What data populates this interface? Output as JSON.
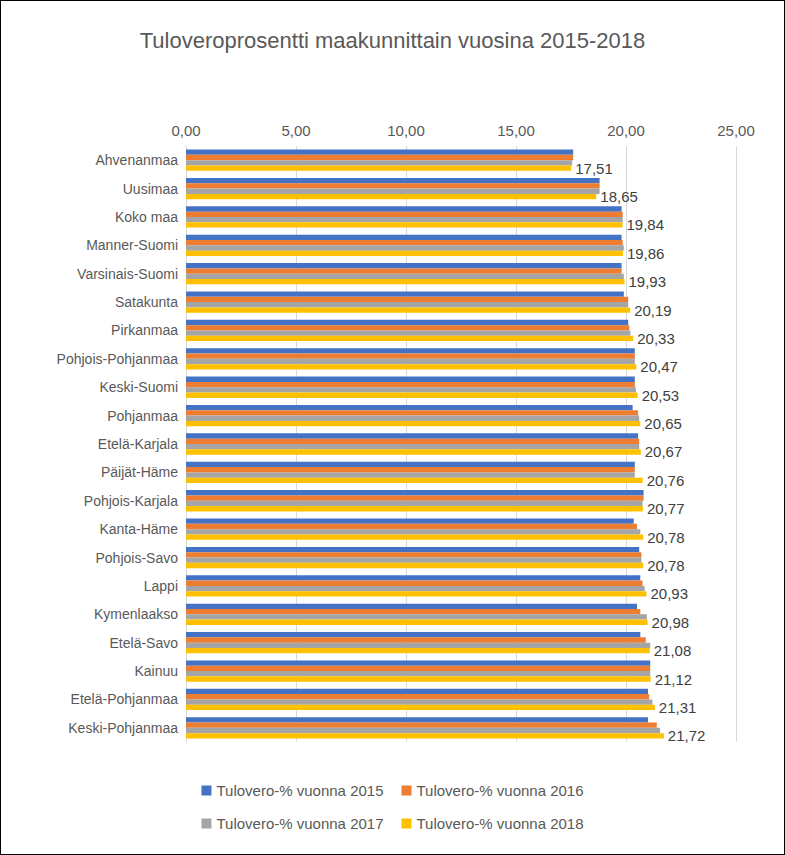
{
  "chart_data": {
    "type": "bar",
    "title": "Tuloveroprosentti maakunnittain vuosina 2015-2018",
    "orientation": "horizontal",
    "grid": true,
    "legend": "bottom",
    "categories": [
      "Ahvenanmaa",
      "Uusimaa",
      "Koko maa",
      "Manner-Suomi",
      "Varsinais-Suomi",
      "Satakunta",
      "Pirkanmaa",
      "Pohjois-Pohjanmaa",
      "Keski-Suomi",
      "Pohjanmaa",
      "Etelä-Karjala",
      "Päijät-Häme",
      "Pohjois-Karjala",
      "Kanta-Häme",
      "Pohjois-Savo",
      "Lappi",
      "Kymenlaakso",
      "Etelä-Savo",
      "Kainuu",
      "Etelä-Pohjanmaa",
      "Keski-Pohjanmaa"
    ],
    "xlim": [
      0,
      25
    ],
    "xticks": [
      {
        "value": 0,
        "label": "0,00"
      },
      {
        "value": 5,
        "label": "5,00"
      },
      {
        "value": 10,
        "label": "10,00"
      },
      {
        "value": 15,
        "label": "15,00"
      },
      {
        "value": 20,
        "label": "20,00"
      },
      {
        "value": 25,
        "label": "25,00"
      }
    ],
    "series": [
      {
        "name": "Tulovero-% vuonna 2015",
        "color": "#4472c4",
        "values": [
          17.6,
          18.8,
          19.8,
          19.8,
          19.8,
          19.9,
          20.1,
          20.4,
          20.4,
          20.3,
          20.55,
          20.4,
          20.8,
          20.35,
          20.6,
          20.65,
          20.5,
          20.65,
          21.1,
          21.0,
          21.0
        ]
      },
      {
        "name": "Tulovero-% vuonna 2016",
        "color": "#ed7d31",
        "values": [
          17.6,
          18.8,
          19.85,
          19.85,
          19.8,
          20.1,
          20.15,
          20.4,
          20.4,
          20.55,
          20.6,
          20.4,
          20.8,
          20.5,
          20.7,
          20.75,
          20.65,
          20.9,
          21.1,
          21.05,
          21.4
        ]
      },
      {
        "name": "Tulovero-% vuonna 2017",
        "color": "#a5a5a5",
        "values": [
          17.55,
          18.8,
          19.85,
          19.9,
          19.9,
          20.1,
          20.2,
          20.4,
          20.45,
          20.6,
          20.6,
          20.4,
          20.75,
          20.65,
          20.7,
          20.85,
          20.95,
          21.1,
          21.1,
          21.2,
          21.55
        ]
      },
      {
        "name": "Tulovero-% vuonna 2018",
        "color": "#ffc000",
        "values": [
          17.51,
          18.65,
          19.84,
          19.86,
          19.93,
          20.19,
          20.33,
          20.47,
          20.53,
          20.65,
          20.67,
          20.76,
          20.77,
          20.78,
          20.78,
          20.93,
          20.98,
          21.08,
          21.12,
          21.31,
          21.72
        ],
        "data_labels": true,
        "value_labels": [
          "17,51",
          "18,65",
          "19,84",
          "19,86",
          "19,93",
          "20,19",
          "20,33",
          "20,47",
          "20,53",
          "20,65",
          "20,67",
          "20,76",
          "20,77",
          "20,78",
          "20,78",
          "20,93",
          "20,98",
          "21,08",
          "21,12",
          "21,31",
          "21,72"
        ]
      }
    ]
  }
}
